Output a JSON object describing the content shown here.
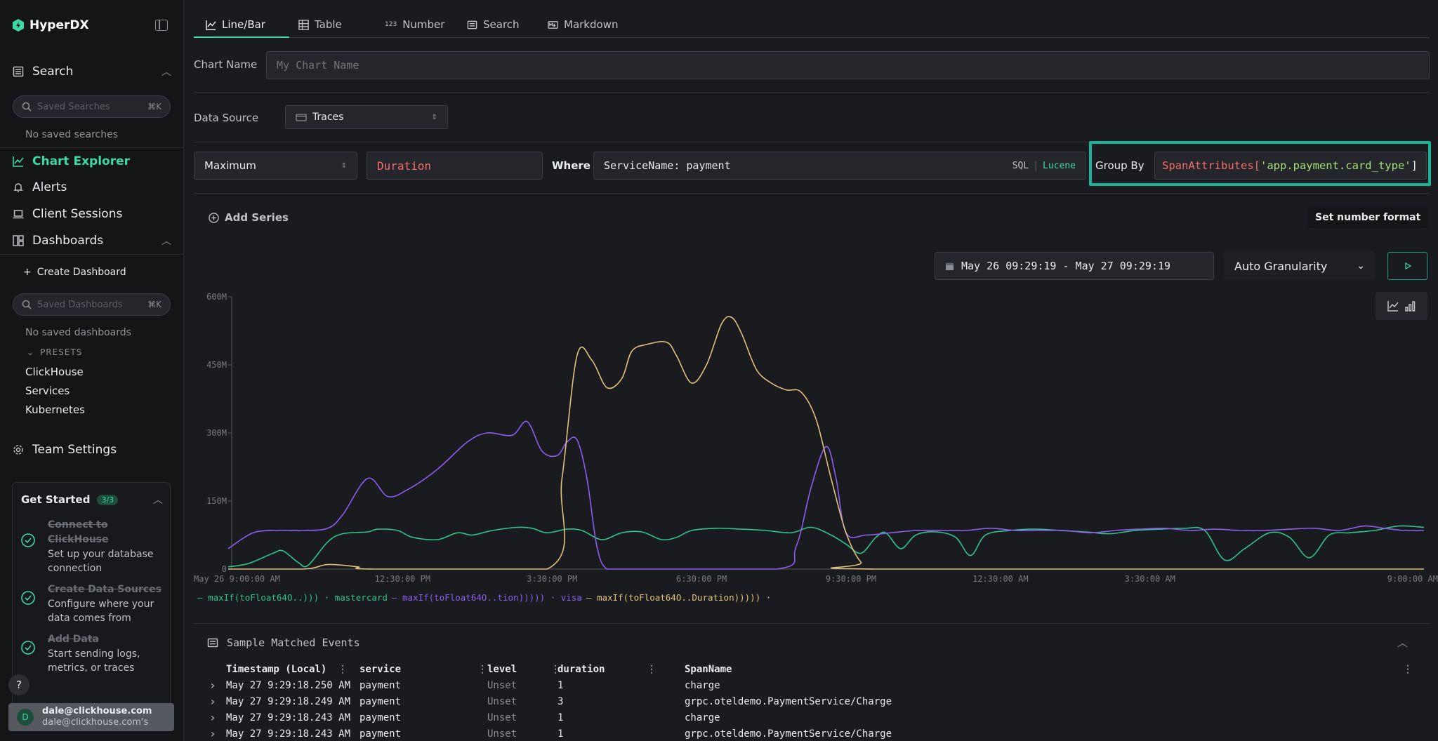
{
  "brand": {
    "name": "HyperDX"
  },
  "sidebar": {
    "search_label": "Search",
    "saved_searches_placeholder": "Saved Searches",
    "saved_searches_kbd": "⌘K",
    "no_saved_searches": "No saved searches",
    "chart_explorer": "Chart Explorer",
    "alerts": "Alerts",
    "client_sessions": "Client Sessions",
    "dashboards": "Dashboards",
    "create_dashboard": "Create Dashboard",
    "saved_dashboards_placeholder": "Saved Dashboards",
    "saved_dashboards_kbd": "⌘K",
    "no_saved_dashboards": "No saved dashboards",
    "presets_label": "PRESETS",
    "presets": [
      "ClickHouse",
      "Services",
      "Kubernetes"
    ],
    "team_settings": "Team Settings",
    "get_started": {
      "title": "Get Started",
      "progress": "3/3",
      "steps": [
        {
          "title": "Connect to ClickHouse",
          "desc": "Set up your database connection"
        },
        {
          "title": "Create Data Sources",
          "desc": "Configure where your data comes from"
        },
        {
          "title": "Add Data",
          "desc": "Start sending logs, metrics, or traces"
        }
      ]
    },
    "user": {
      "initial": "D",
      "name": "dale@clickhouse.com",
      "org": "dale@clickhouse.com's"
    }
  },
  "tabs": [
    {
      "label": "Line/Bar",
      "icon": "line-chart-icon"
    },
    {
      "label": "Table",
      "icon": "table-icon"
    },
    {
      "label": "Number",
      "icon": "number-icon"
    },
    {
      "label": "Search",
      "icon": "search-list-icon"
    },
    {
      "label": "Markdown",
      "icon": "markdown-icon"
    }
  ],
  "chart_name": {
    "label": "Chart Name",
    "placeholder": "My Chart Name"
  },
  "data_source": {
    "label": "Data Source",
    "value": "Traces"
  },
  "series": {
    "aggregation": "Maximum",
    "field": "Duration",
    "where_label": "Where",
    "where_value": "ServiceName: payment",
    "sql_label": "SQL",
    "sep": "|",
    "lucene_label": "Lucene",
    "group_by_label": "Group By",
    "group_by_fn": "SpanAttributes[",
    "group_by_key": "'app.payment.card_type'",
    "group_by_end": "]"
  },
  "add_series": "Add Series",
  "set_number_format": "Set number format",
  "time_range": "May 26 09:29:19 - May 27 09:29:19",
  "granularity": "Auto Granularity",
  "colors": {
    "green": "#2fc48c",
    "purple": "#8e5cf0",
    "yellow": "#e2c07e",
    "accent": "#3dd9a6",
    "red": "#f36d6d"
  },
  "chart_data": {
    "type": "line",
    "ylim": [
      0,
      600
    ],
    "yticks": [
      "0",
      "150M",
      "300M",
      "450M",
      "600M"
    ],
    "xticks": [
      "May 26 9:00:00 AM",
      "12:30:00 PM",
      "3:30:00 PM",
      "6:30:00 PM",
      "9:30:00 PM",
      "12:30:00 AM",
      "3:30:00 AM",
      "9:00:00 AM"
    ],
    "x_hours": [
      0,
      3.5,
      6.5,
      9.5,
      12.5,
      15.5,
      18.5,
      24
    ],
    "series": [
      {
        "name": "maxIf(toFloat64O..))) · mastercard",
        "color": "#2fc48c",
        "points": [
          [
            0,
            5
          ],
          [
            0.4,
            12
          ],
          [
            0.9,
            35
          ],
          [
            1.1,
            40
          ],
          [
            1.4,
            15
          ],
          [
            1.6,
            8
          ],
          [
            2.0,
            60
          ],
          [
            2.3,
            78
          ],
          [
            2.8,
            82
          ],
          [
            3.0,
            88
          ],
          [
            3.4,
            85
          ],
          [
            3.7,
            70
          ],
          [
            4.2,
            65
          ],
          [
            4.6,
            80
          ],
          [
            4.9,
            75
          ],
          [
            5.3,
            85
          ],
          [
            5.8,
            92
          ],
          [
            6.1,
            90
          ],
          [
            6.4,
            80
          ],
          [
            6.8,
            88
          ],
          [
            7.1,
            85
          ],
          [
            7.5,
            65
          ],
          [
            7.9,
            80
          ],
          [
            8.3,
            82
          ],
          [
            8.7,
            65
          ],
          [
            9.0,
            70
          ],
          [
            9.3,
            85
          ],
          [
            9.8,
            90
          ],
          [
            10.3,
            88
          ],
          [
            10.8,
            85
          ],
          [
            11.3,
            80
          ],
          [
            11.7,
            92
          ],
          [
            12.1,
            75
          ],
          [
            12.4,
            55
          ],
          [
            12.7,
            35
          ],
          [
            13.0,
            70
          ],
          [
            13.2,
            80
          ],
          [
            13.5,
            45
          ],
          [
            13.8,
            75
          ],
          [
            14.2,
            82
          ],
          [
            14.6,
            70
          ],
          [
            14.9,
            30
          ],
          [
            15.2,
            75
          ],
          [
            15.7,
            85
          ],
          [
            16.2,
            88
          ],
          [
            16.7,
            85
          ],
          [
            17.2,
            82
          ],
          [
            17.7,
            78
          ],
          [
            18.2,
            85
          ],
          [
            18.7,
            88
          ],
          [
            19.2,
            90
          ],
          [
            19.6,
            85
          ],
          [
            20.0,
            20
          ],
          [
            20.4,
            45
          ],
          [
            20.9,
            80
          ],
          [
            21.3,
            70
          ],
          [
            21.7,
            25
          ],
          [
            22.1,
            75
          ],
          [
            22.5,
            80
          ],
          [
            23.0,
            85
          ],
          [
            23.5,
            95
          ],
          [
            24,
            92
          ]
        ]
      },
      {
        "name": "maxIf(toFloat64O..tion))))) · visa",
        "color": "#8e5cf0",
        "points": [
          [
            0,
            45
          ],
          [
            0.5,
            80
          ],
          [
            1.0,
            85
          ],
          [
            1.5,
            85
          ],
          [
            2.0,
            90
          ],
          [
            2.3,
            120
          ],
          [
            2.8,
            200
          ],
          [
            3.2,
            160
          ],
          [
            3.6,
            175
          ],
          [
            4.2,
            220
          ],
          [
            4.8,
            280
          ],
          [
            5.2,
            300
          ],
          [
            5.7,
            295
          ],
          [
            6.0,
            325
          ],
          [
            6.3,
            260
          ],
          [
            6.6,
            250
          ],
          [
            6.8,
            280
          ],
          [
            7.0,
            285
          ],
          [
            7.2,
            200
          ],
          [
            7.4,
            50
          ],
          [
            7.6,
            0
          ],
          [
            8.0,
            0
          ],
          [
            11.0,
            0
          ],
          [
            11.4,
            50
          ],
          [
            11.7,
            180
          ],
          [
            12.0,
            270
          ],
          [
            12.2,
            200
          ],
          [
            12.4,
            80
          ],
          [
            12.8,
            75
          ],
          [
            13.3,
            80
          ],
          [
            13.8,
            85
          ],
          [
            14.3,
            85
          ],
          [
            14.8,
            85
          ],
          [
            15.3,
            90
          ],
          [
            15.8,
            85
          ],
          [
            16.3,
            85
          ],
          [
            16.8,
            85
          ],
          [
            17.3,
            80
          ],
          [
            17.8,
            85
          ],
          [
            18.3,
            88
          ],
          [
            18.8,
            90
          ],
          [
            19.3,
            85
          ],
          [
            19.8,
            88
          ],
          [
            20.3,
            85
          ],
          [
            20.8,
            85
          ],
          [
            21.3,
            88
          ],
          [
            21.8,
            90
          ],
          [
            22.3,
            85
          ],
          [
            22.8,
            95
          ],
          [
            23.2,
            90
          ],
          [
            23.6,
            85
          ],
          [
            24,
            85
          ]
        ]
      },
      {
        "name": "maxIf(toFloat64O..Duration))))) ·",
        "color": "#e2c07e",
        "points": [
          [
            0,
            0
          ],
          [
            1.5,
            0
          ],
          [
            2.0,
            10
          ],
          [
            2.6,
            5
          ],
          [
            2.9,
            0
          ],
          [
            6.4,
            0
          ],
          [
            6.7,
            200
          ],
          [
            7.0,
            470
          ],
          [
            7.3,
            460
          ],
          [
            7.6,
            400
          ],
          [
            7.9,
            420
          ],
          [
            8.1,
            480
          ],
          [
            8.4,
            495
          ],
          [
            8.8,
            500
          ],
          [
            9.0,
            470
          ],
          [
            9.3,
            410
          ],
          [
            9.6,
            450
          ],
          [
            9.9,
            540
          ],
          [
            10.1,
            555
          ],
          [
            10.3,
            520
          ],
          [
            10.6,
            440
          ],
          [
            10.9,
            410
          ],
          [
            11.2,
            395
          ],
          [
            11.5,
            390
          ],
          [
            11.8,
            330
          ],
          [
            12.1,
            200
          ],
          [
            12.4,
            80
          ],
          [
            12.7,
            15
          ],
          [
            13.0,
            0
          ],
          [
            24,
            0
          ]
        ]
      }
    ]
  },
  "sample_events": {
    "title": "Sample Matched Events",
    "columns": [
      "Timestamp (Local)",
      "service",
      "level",
      "duration",
      "SpanName"
    ],
    "rows": [
      [
        "May 27 9:29:18.250 AM",
        "payment",
        "Unset",
        "1",
        "charge"
      ],
      [
        "May 27 9:29:18.249 AM",
        "payment",
        "Unset",
        "3",
        "grpc.oteldemo.PaymentService/Charge"
      ],
      [
        "May 27 9:29:18.243 AM",
        "payment",
        "Unset",
        "1",
        "charge"
      ],
      [
        "May 27 9:29:18.243 AM",
        "payment",
        "Unset",
        "1",
        "grpc.oteldemo.PaymentService/Charge"
      ]
    ]
  }
}
